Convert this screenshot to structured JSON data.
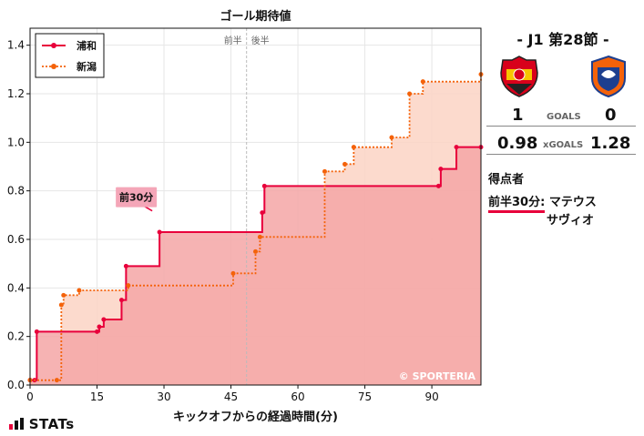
{
  "chart_data": {
    "type": "line",
    "title": "ゴール期待値",
    "xlabel": "キックオフからの経過時間(分)",
    "ylabel": "",
    "xlim": [
      0,
      101
    ],
    "ylim": [
      0,
      1.47
    ],
    "xticks": [
      0,
      15,
      30,
      45,
      60,
      75,
      90
    ],
    "yticks": [
      0.0,
      0.2,
      0.4,
      0.6,
      0.8,
      1.0,
      1.2,
      1.4
    ],
    "xtick_labels": [
      "0",
      "15",
      "30",
      "45",
      "60",
      "75",
      "90"
    ],
    "ytick_labels": [
      "0.0",
      "0.2",
      "0.4",
      "0.6",
      "0.8",
      "1.0",
      "1.2",
      "1.4"
    ],
    "grid": true,
    "legend_position": "top-left",
    "half_markers": {
      "first": "前半",
      "second": "後半",
      "x": 48.5
    },
    "annotation": {
      "text": "前30分",
      "x": 29,
      "y": 0.71
    },
    "watermark": "© SPORTERIA",
    "series": [
      {
        "name": "浦和",
        "color": "#e8003b",
        "fill": "#f4a6a6",
        "style": "solid",
        "x": [
          0,
          1,
          1.5,
          15,
          15.5,
          16.5,
          20.5,
          21.5,
          29,
          52,
          52.5,
          91.5,
          92,
          95.5,
          101
        ],
        "y": [
          0.02,
          0.02,
          0.22,
          0.22,
          0.24,
          0.27,
          0.35,
          0.49,
          0.63,
          0.71,
          0.82,
          0.82,
          0.89,
          0.98,
          0.98
        ]
      },
      {
        "name": "新潟",
        "color": "#f4620a",
        "fill": "#fbd4c4",
        "style": "dotted",
        "x": [
          0,
          6,
          7,
          7.5,
          11,
          22,
          45.5,
          50.5,
          51.5,
          66,
          70.5,
          72.5,
          81,
          85,
          88,
          101
        ],
        "y": [
          0.02,
          0.02,
          0.33,
          0.37,
          0.39,
          0.41,
          0.46,
          0.55,
          0.61,
          0.88,
          0.91,
          0.98,
          1.02,
          1.2,
          1.25,
          1.28
        ]
      }
    ],
    "goals": [
      {
        "team": "浦和",
        "x": 29,
        "y": 0.71
      }
    ]
  },
  "match": {
    "title": "-  J1 第28節  -",
    "home_score": "1",
    "away_score": "0",
    "goals_label": "GOALS",
    "home_xg": "0.98",
    "away_xg": "1.28",
    "xg_label": "xGOALS",
    "home_badge_color": "#d8001b",
    "away_badge_color": "#f4620a"
  },
  "scorers": {
    "title": "得点者",
    "items": [
      {
        "minute": "前半30分:",
        "name": "マテウス",
        "name2": "サヴィオ"
      }
    ]
  },
  "footer": {
    "brand": "STATs"
  }
}
